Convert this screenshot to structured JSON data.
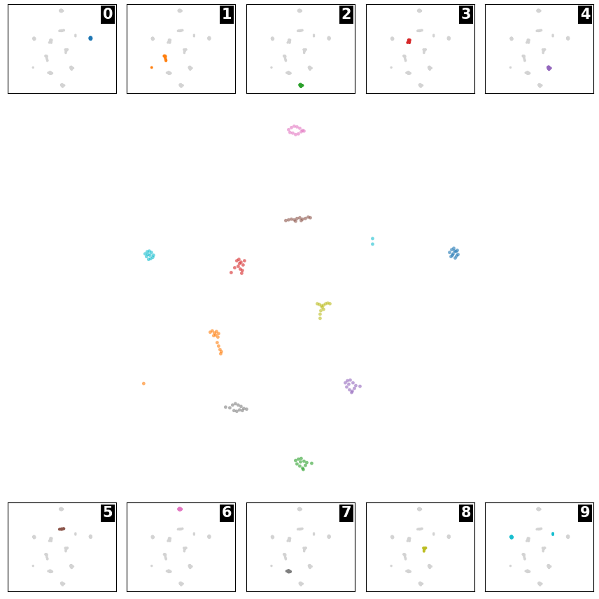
{
  "chart_data": {
    "type": "scatter",
    "tick_labels": false,
    "grid": false,
    "xlim": [
      0.1,
      8.46
    ],
    "ylim": [
      1.46,
      7.16
    ],
    "series": [
      {
        "name": "0",
        "color": "#1f77b4",
        "x": [
          6.42,
          6.45,
          6.48,
          6.51,
          6.54,
          6.44,
          6.5,
          6.47,
          6.53,
          6.46,
          6.49,
          6.52
        ],
        "y": [
          4.98,
          5.02,
          5.04,
          4.99,
          4.95,
          4.92,
          4.9,
          4.96,
          5.01,
          4.94,
          5.0,
          4.93
        ]
      },
      {
        "name": "1",
        "color": "#ff7f0e",
        "x": [
          3.0,
          3.03,
          3.06,
          3.09,
          3.12,
          3.05,
          3.08,
          3.11,
          3.1,
          3.12,
          3.14,
          3.16,
          3.15,
          2.05
        ],
        "y": [
          3.83,
          3.85,
          3.82,
          3.84,
          3.81,
          3.78,
          3.79,
          3.76,
          3.68,
          3.63,
          3.58,
          3.55,
          3.52,
          3.09
        ]
      },
      {
        "name": "2",
        "color": "#2ca02c",
        "x": [
          4.22,
          4.26,
          4.3,
          4.34,
          4.38,
          4.24,
          4.28,
          4.32,
          4.36,
          4.45,
          4.29,
          4.33
        ],
        "y": [
          1.98,
          2.0,
          2.01,
          1.97,
          1.95,
          1.93,
          1.9,
          1.87,
          1.91,
          1.94,
          1.96,
          1.85
        ]
      },
      {
        "name": "3",
        "color": "#d62728",
        "x": [
          3.38,
          3.41,
          3.44,
          3.47,
          3.4,
          3.43,
          3.46,
          3.35,
          3.3,
          3.49,
          3.42,
          3.45
        ],
        "y": [
          4.86,
          4.88,
          4.84,
          4.8,
          4.78,
          4.74,
          4.72,
          4.76,
          4.69,
          4.86,
          4.82,
          4.68
        ]
      },
      {
        "name": "4",
        "color": "#9467bd",
        "x": [
          4.93,
          4.96,
          5.0,
          5.04,
          5.08,
          4.95,
          4.99,
          5.03,
          5.06,
          5.14,
          4.98,
          5.02
        ],
        "y": [
          3.1,
          3.13,
          3.14,
          3.1,
          3.06,
          3.04,
          3.0,
          2.98,
          3.02,
          3.05,
          3.08,
          2.96
        ]
      },
      {
        "name": "5",
        "color": "#8c564b",
        "x": [
          4.08,
          4.12,
          4.16,
          4.2,
          4.24,
          4.28,
          4.32,
          4.36,
          4.4,
          4.43,
          4.22,
          4.3
        ],
        "y": [
          5.44,
          5.45,
          5.46,
          5.45,
          5.47,
          5.48,
          5.46,
          5.47,
          5.49,
          5.48,
          5.43,
          5.44
        ]
      },
      {
        "name": "6",
        "color": "#e377c2",
        "x": [
          4.12,
          4.16,
          4.2,
          4.24,
          4.28,
          4.32,
          4.18,
          4.22,
          4.26,
          4.3,
          4.14,
          4.34
        ],
        "y": [
          6.75,
          6.78,
          6.8,
          6.79,
          6.77,
          6.74,
          6.7,
          6.68,
          6.69,
          6.72,
          6.71,
          6.73
        ]
      },
      {
        "name": "7",
        "color": "#7f7f7f",
        "x": [
          3.22,
          3.28,
          3.32,
          3.36,
          3.4,
          3.44,
          3.48,
          3.52,
          3.34,
          3.38,
          3.42,
          3.46
        ],
        "y": [
          2.75,
          2.74,
          2.78,
          2.8,
          2.78,
          2.76,
          2.73,
          2.72,
          2.7,
          2.69,
          2.71,
          2.7
        ]
      },
      {
        "name": "8",
        "color": "#bcbd22",
        "x": [
          4.53,
          4.56,
          4.59,
          4.62,
          4.65,
          4.68,
          4.71,
          4.6,
          4.62,
          4.58,
          4.57,
          4.57
        ],
        "y": [
          4.24,
          4.23,
          4.21,
          4.22,
          4.24,
          4.25,
          4.24,
          4.19,
          4.16,
          4.14,
          4.09,
          4.03
        ]
      },
      {
        "name": "9",
        "color": "#17becf",
        "x": [
          2.07,
          2.1,
          2.13,
          2.16,
          2.19,
          2.09,
          2.12,
          2.15,
          2.18,
          2.11,
          2.14,
          5.32,
          5.32
        ],
        "y": [
          4.96,
          4.99,
          5.0,
          4.98,
          4.94,
          4.92,
          4.88,
          4.89,
          4.91,
          4.95,
          4.94,
          5.18,
          5.1
        ]
      }
    ]
  }
}
